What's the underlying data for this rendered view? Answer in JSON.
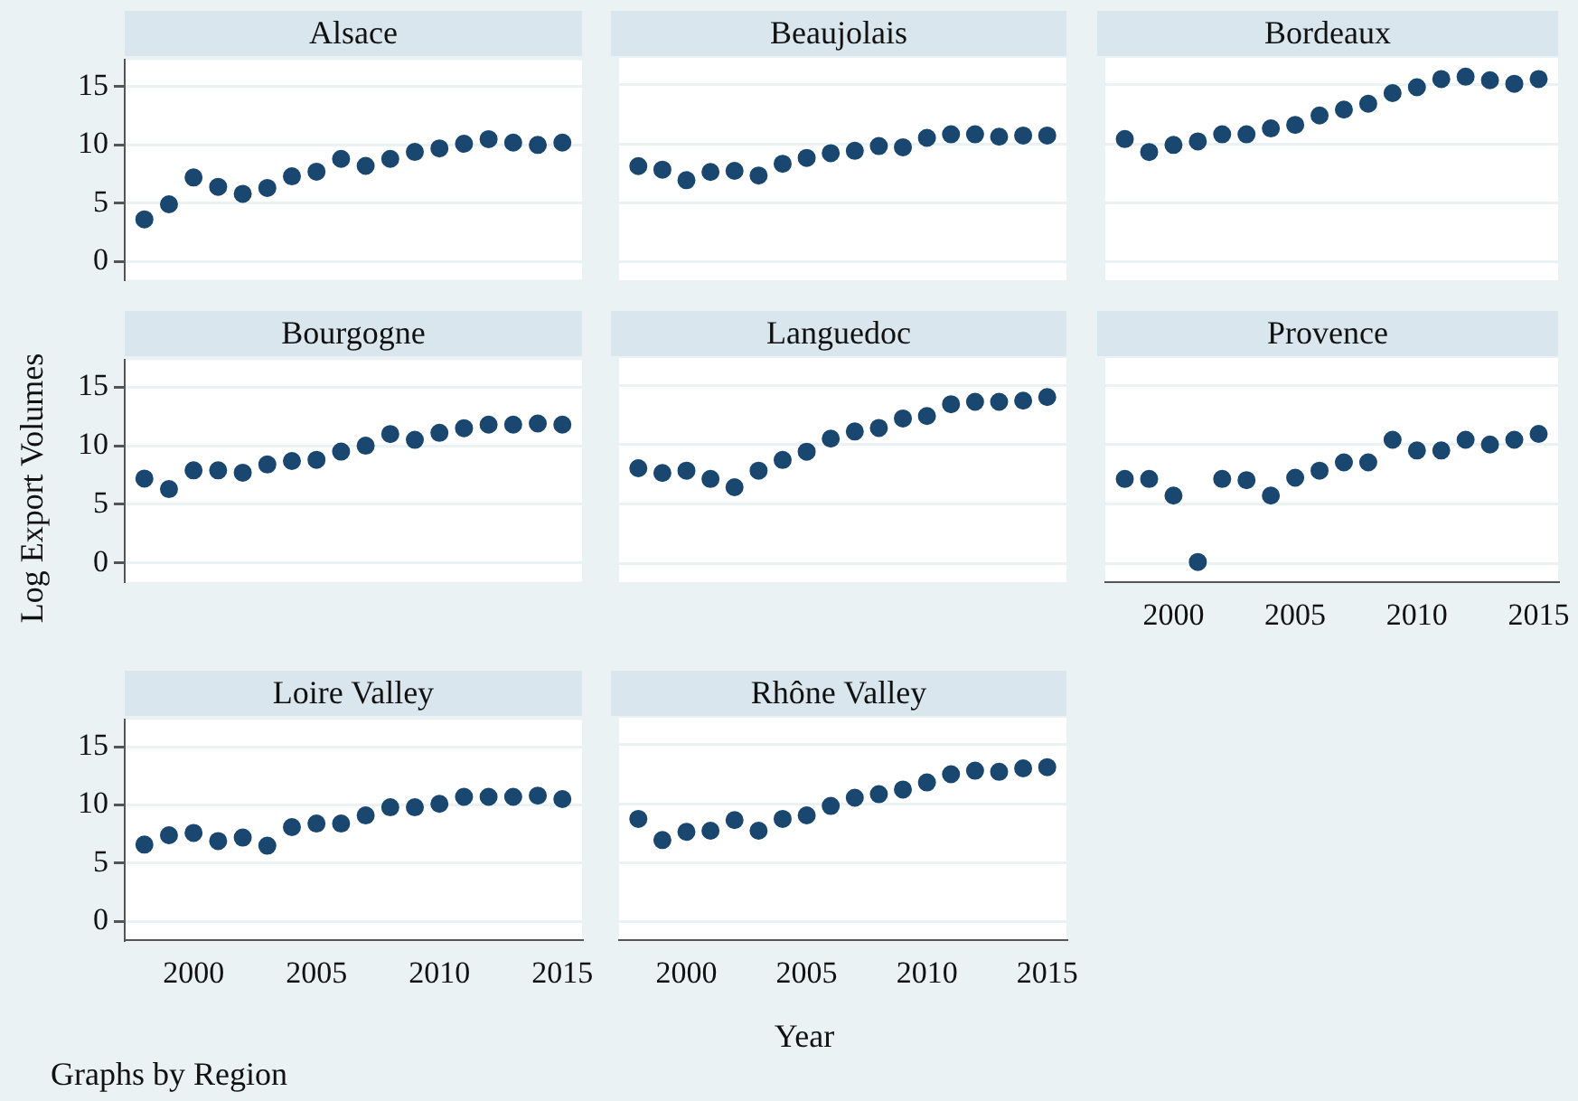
{
  "chart_data": [
    {
      "type": "scatter",
      "title": "Alsace",
      "x": [
        1998,
        1999,
        2000,
        2001,
        2002,
        2003,
        2004,
        2005,
        2006,
        2007,
        2008,
        2009,
        2010,
        2011,
        2012,
        2013,
        2014,
        2015
      ],
      "values": [
        3.6,
        4.9,
        7.2,
        6.4,
        5.8,
        6.3,
        7.3,
        7.7,
        8.8,
        8.2,
        8.8,
        9.4,
        9.7,
        10.1,
        10.5,
        10.2,
        10.0,
        10.2
      ],
      "color": "#1a476f",
      "marker": "circle",
      "grid": "y",
      "xlim": [
        1997.2,
        2015.8
      ],
      "ylim": [
        -1.6,
        17.3
      ],
      "xticks": [
        2000,
        2005,
        2010,
        2015
      ],
      "yticks": [
        0,
        5,
        10,
        15
      ],
      "tick_labels": "y"
    },
    {
      "type": "scatter",
      "title": "Beaujolais",
      "x": [
        1998,
        1999,
        2000,
        2001,
        2002,
        2003,
        2004,
        2005,
        2006,
        2007,
        2008,
        2009,
        2010,
        2011,
        2012,
        2013,
        2014,
        2015
      ],
      "values": [
        8.1,
        7.8,
        6.9,
        7.6,
        7.7,
        7.3,
        8.3,
        8.8,
        9.2,
        9.4,
        9.8,
        9.7,
        10.5,
        10.8,
        10.8,
        10.6,
        10.7,
        10.7
      ],
      "color": "#1a476f",
      "marker": "circle",
      "grid": "y",
      "xlim": [
        1997.2,
        2015.8
      ],
      "ylim": [
        -1.6,
        17.3
      ],
      "xticks": [
        2000,
        2005,
        2010,
        2015
      ],
      "yticks": [
        0,
        5,
        10,
        15
      ],
      "tick_labels": false
    },
    {
      "type": "scatter",
      "title": "Bordeaux",
      "x": [
        1998,
        1999,
        2000,
        2001,
        2002,
        2003,
        2004,
        2005,
        2006,
        2007,
        2008,
        2009,
        2010,
        2011,
        2012,
        2013,
        2014,
        2015
      ],
      "values": [
        10.4,
        9.3,
        9.9,
        10.2,
        10.8,
        10.8,
        11.3,
        11.6,
        12.4,
        12.9,
        13.4,
        14.3,
        14.8,
        15.5,
        15.7,
        15.4,
        15.1,
        15.5
      ],
      "color": "#1a476f",
      "marker": "circle",
      "grid": "y",
      "xlim": [
        1997.2,
        2015.8
      ],
      "ylim": [
        -1.6,
        17.3
      ],
      "xticks": [
        2000,
        2005,
        2010,
        2015
      ],
      "yticks": [
        0,
        5,
        10,
        15
      ],
      "tick_labels": false
    },
    {
      "type": "scatter",
      "title": "Bourgogne",
      "ylabel": "Log Export Volumes",
      "x": [
        1998,
        1999,
        2000,
        2001,
        2002,
        2003,
        2004,
        2005,
        2006,
        2007,
        2008,
        2009,
        2010,
        2011,
        2012,
        2013,
        2014,
        2015
      ],
      "values": [
        7.2,
        6.3,
        7.9,
        7.9,
        7.7,
        8.4,
        8.7,
        8.8,
        9.5,
        10.0,
        11.0,
        10.5,
        11.1,
        11.5,
        11.8,
        11.8,
        11.9,
        11.8
      ],
      "color": "#1a476f",
      "marker": "circle",
      "grid": "y",
      "xlim": [
        1997.2,
        2015.8
      ],
      "ylim": [
        -1.6,
        17.3
      ],
      "xticks": [
        2000,
        2005,
        2010,
        2015
      ],
      "yticks": [
        0,
        5,
        10,
        15
      ],
      "tick_labels": "y"
    },
    {
      "type": "scatter",
      "title": "Languedoc",
      "x": [
        1998,
        1999,
        2000,
        2001,
        2002,
        2003,
        2004,
        2005,
        2006,
        2007,
        2008,
        2009,
        2010,
        2011,
        2012,
        2013,
        2014,
        2015
      ],
      "values": [
        8.0,
        7.6,
        7.8,
        7.1,
        6.4,
        7.8,
        8.7,
        9.4,
        10.5,
        11.1,
        11.4,
        12.2,
        12.4,
        13.4,
        13.6,
        13.6,
        13.7,
        14.0
      ],
      "color": "#1a476f",
      "marker": "circle",
      "grid": "y",
      "xlim": [
        1997.2,
        2015.8
      ],
      "ylim": [
        -1.6,
        17.3
      ],
      "xticks": [
        2000,
        2005,
        2010,
        2015
      ],
      "yticks": [
        0,
        5,
        10,
        15
      ],
      "tick_labels": false
    },
    {
      "type": "scatter",
      "title": "Provence",
      "x": [
        1998,
        1999,
        2000,
        2001,
        2002,
        2003,
        2004,
        2005,
        2006,
        2007,
        2008,
        2009,
        2010,
        2011,
        2012,
        2013,
        2014,
        2015
      ],
      "values": [
        7.1,
        7.1,
        5.7,
        0.1,
        7.1,
        7.0,
        5.7,
        7.2,
        7.8,
        8.5,
        8.5,
        10.4,
        9.5,
        9.5,
        10.4,
        10.0,
        10.4,
        10.9
      ],
      "color": "#1a476f",
      "marker": "circle",
      "grid": "y",
      "xlim": [
        1997.2,
        2015.8
      ],
      "ylim": [
        -1.6,
        17.3
      ],
      "xticks": [
        2000,
        2005,
        2010,
        2015
      ],
      "yticks": [
        0,
        5,
        10,
        15
      ],
      "tick_labels": "x"
    },
    {
      "type": "scatter",
      "title": "Loire Valley",
      "annotations": [
        "Graphs by Region"
      ],
      "x": [
        1998,
        1999,
        2000,
        2001,
        2002,
        2003,
        2004,
        2005,
        2006,
        2007,
        2008,
        2009,
        2010,
        2011,
        2012,
        2013,
        2014,
        2015
      ],
      "values": [
        6.6,
        7.4,
        7.6,
        6.9,
        7.2,
        6.5,
        8.1,
        8.4,
        8.4,
        9.1,
        9.8,
        9.8,
        10.1,
        10.7,
        10.7,
        10.7,
        10.8,
        10.5
      ],
      "color": "#1a476f",
      "marker": "circle",
      "grid": "y",
      "xlim": [
        1997.2,
        2015.8
      ],
      "ylim": [
        -1.6,
        17.3
      ],
      "xticks": [
        2000,
        2005,
        2010,
        2015
      ],
      "yticks": [
        0,
        5,
        10,
        15
      ]
    },
    {
      "type": "scatter",
      "title": "Rhône Valley",
      "xlabel": "Year",
      "x": [
        1998,
        1999,
        2000,
        2001,
        2002,
        2003,
        2004,
        2005,
        2006,
        2007,
        2008,
        2009,
        2010,
        2011,
        2012,
        2013,
        2014,
        2015
      ],
      "values": [
        8.7,
        6.9,
        7.6,
        7.7,
        8.6,
        7.7,
        8.7,
        9.0,
        9.8,
        10.5,
        10.8,
        11.2,
        11.8,
        12.5,
        12.8,
        12.7,
        13.0,
        13.1
      ],
      "color": "#1a476f",
      "marker": "circle",
      "grid": "y",
      "xlim": [
        1997.2,
        2015.8
      ],
      "ylim": [
        -1.6,
        17.3
      ],
      "xticks": [
        2000,
        2005,
        2010,
        2015
      ],
      "yticks": [
        0,
        5,
        10,
        15
      ],
      "tick_labels": "x"
    }
  ]
}
